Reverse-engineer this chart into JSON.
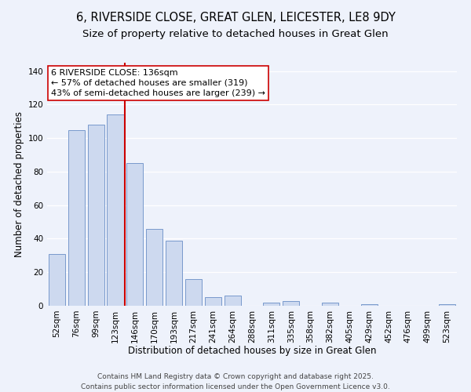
{
  "title": "6, RIVERSIDE CLOSE, GREAT GLEN, LEICESTER, LE8 9DY",
  "subtitle": "Size of property relative to detached houses in Great Glen",
  "xlabel": "Distribution of detached houses by size in Great Glen",
  "ylabel": "Number of detached properties",
  "categories": [
    "52sqm",
    "76sqm",
    "99sqm",
    "123sqm",
    "146sqm",
    "170sqm",
    "193sqm",
    "217sqm",
    "241sqm",
    "264sqm",
    "288sqm",
    "311sqm",
    "335sqm",
    "358sqm",
    "382sqm",
    "405sqm",
    "429sqm",
    "452sqm",
    "476sqm",
    "499sqm",
    "523sqm"
  ],
  "values": [
    31,
    105,
    108,
    114,
    85,
    46,
    39,
    16,
    5,
    6,
    0,
    2,
    3,
    0,
    2,
    0,
    1,
    0,
    0,
    0,
    1
  ],
  "bar_color": "#cdd9ef",
  "bar_edge_color": "#7899cc",
  "vline_color": "#cc0000",
  "vline_x": 3.5,
  "annotation_title": "6 RIVERSIDE CLOSE: 136sqm",
  "annotation_line1": "← 57% of detached houses are smaller (319)",
  "annotation_line2": "43% of semi-detached houses are larger (239) →",
  "annotation_box_color": "#ffffff",
  "annotation_box_edge": "#cc0000",
  "ylim": [
    0,
    145
  ],
  "yticks": [
    0,
    20,
    40,
    60,
    80,
    100,
    120,
    140
  ],
  "background_color": "#eef2fb",
  "grid_color": "#ffffff",
  "footer1": "Contains HM Land Registry data © Crown copyright and database right 2025.",
  "footer2": "Contains public sector information licensed under the Open Government Licence v3.0.",
  "title_fontsize": 10.5,
  "subtitle_fontsize": 9.5,
  "xlabel_fontsize": 8.5,
  "ylabel_fontsize": 8.5,
  "tick_fontsize": 7.5,
  "annotation_fontsize": 8,
  "footer_fontsize": 6.5
}
